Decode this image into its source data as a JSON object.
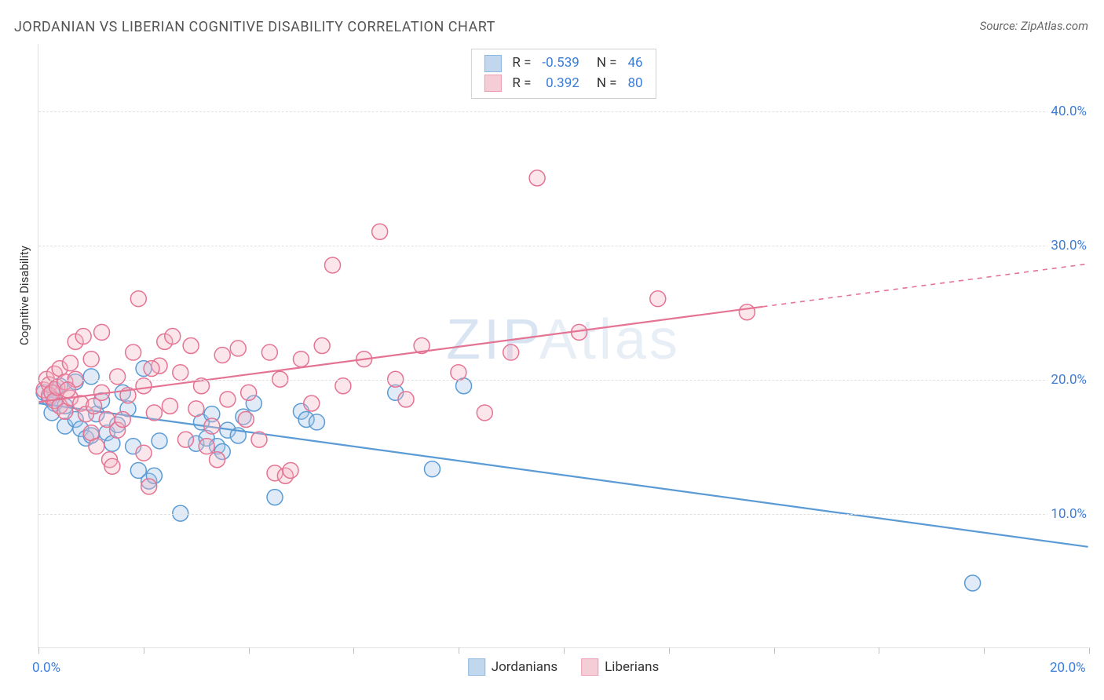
{
  "title": "JORDANIAN VS LIBERIAN COGNITIVE DISABILITY CORRELATION CHART",
  "source": "Source: ZipAtlas.com",
  "yaxis_title": "Cognitive Disability",
  "watermark": "ZIPAtlas",
  "chart": {
    "type": "scatter",
    "xlim": [
      0,
      20
    ],
    "ylim": [
      0,
      45
    ],
    "x_ticks": [
      0,
      2,
      4,
      6,
      8,
      10,
      12,
      14,
      16,
      18,
      20
    ],
    "x_labels": [
      {
        "val": 0,
        "text": "0.0%"
      },
      {
        "val": 20,
        "text": "20.0%"
      }
    ],
    "y_gridlines": [
      10,
      20,
      30,
      40
    ],
    "y_labels": [
      {
        "val": 10,
        "text": "10.0%"
      },
      {
        "val": 20,
        "text": "20.0%"
      },
      {
        "val": 30,
        "text": "30.0%"
      },
      {
        "val": 40,
        "text": "40.0%"
      }
    ],
    "marker_radius": 10,
    "marker_stroke_width": 1.5,
    "marker_fill_opacity": 0.35,
    "line_width": 2.2,
    "grid_color": "#e0e0e0",
    "background_color": "#ffffff"
  },
  "series": [
    {
      "name": "Jordanians",
      "color_stroke": "#5a9bd5",
      "color_fill": "#a7c7e7",
      "R": "-0.539",
      "N": "46",
      "trend": {
        "x1": 0,
        "y1": 18.2,
        "x2": 20,
        "y2": 7.5,
        "dash_from_x": null
      },
      "points": [
        [
          0.1,
          19.0
        ],
        [
          0.2,
          18.6
        ],
        [
          0.3,
          19.2
        ],
        [
          0.3,
          18.2
        ],
        [
          0.25,
          17.5
        ],
        [
          0.4,
          19.5
        ],
        [
          0.5,
          18.0
        ],
        [
          0.5,
          16.5
        ],
        [
          0.7,
          19.8
        ],
        [
          0.7,
          17.0
        ],
        [
          0.8,
          16.3
        ],
        [
          0.9,
          15.6
        ],
        [
          1.0,
          20.2
        ],
        [
          1.0,
          15.8
        ],
        [
          1.1,
          17.4
        ],
        [
          1.2,
          18.4
        ],
        [
          1.3,
          16.0
        ],
        [
          1.4,
          15.2
        ],
        [
          1.5,
          16.6
        ],
        [
          1.6,
          19.0
        ],
        [
          1.8,
          15.0
        ],
        [
          1.9,
          13.2
        ],
        [
          2.0,
          20.8
        ],
        [
          2.1,
          12.4
        ],
        [
          2.2,
          12.8
        ],
        [
          2.3,
          15.4
        ],
        [
          2.7,
          10.0
        ],
        [
          3.0,
          15.2
        ],
        [
          3.1,
          16.8
        ],
        [
          3.2,
          15.6
        ],
        [
          3.3,
          17.4
        ],
        [
          3.4,
          15.0
        ],
        [
          3.5,
          14.6
        ],
        [
          3.6,
          16.2
        ],
        [
          3.8,
          15.8
        ],
        [
          3.9,
          17.2
        ],
        [
          4.1,
          18.2
        ],
        [
          4.5,
          11.2
        ],
        [
          5.0,
          17.6
        ],
        [
          5.1,
          17.0
        ],
        [
          5.3,
          16.8
        ],
        [
          6.8,
          19.0
        ],
        [
          7.5,
          13.3
        ],
        [
          8.1,
          19.5
        ],
        [
          17.8,
          4.8
        ],
        [
          1.7,
          17.8
        ]
      ]
    },
    {
      "name": "Liberians",
      "color_stroke": "#e57393",
      "color_fill": "#f2b8c6",
      "R": "0.392",
      "N": "80",
      "trend": {
        "x1": 0,
        "y1": 18.3,
        "x2": 20,
        "y2": 28.6,
        "dash_from_x": 13.8
      },
      "points": [
        [
          0.1,
          19.2
        ],
        [
          0.15,
          20.0
        ],
        [
          0.2,
          19.6
        ],
        [
          0.2,
          18.8
        ],
        [
          0.25,
          19.0
        ],
        [
          0.3,
          18.4
        ],
        [
          0.3,
          20.4
        ],
        [
          0.35,
          19.4
        ],
        [
          0.4,
          18.0
        ],
        [
          0.4,
          20.8
        ],
        [
          0.5,
          19.8
        ],
        [
          0.5,
          17.6
        ],
        [
          0.6,
          21.2
        ],
        [
          0.6,
          18.6
        ],
        [
          0.7,
          20.0
        ],
        [
          0.7,
          22.8
        ],
        [
          0.8,
          18.2
        ],
        [
          0.85,
          23.2
        ],
        [
          0.9,
          17.4
        ],
        [
          1.0,
          21.5
        ],
        [
          1.0,
          16.0
        ],
        [
          1.1,
          15.0
        ],
        [
          1.2,
          23.5
        ],
        [
          1.2,
          19.0
        ],
        [
          1.3,
          17.0
        ],
        [
          1.35,
          14.0
        ],
        [
          1.4,
          13.5
        ],
        [
          1.5,
          20.2
        ],
        [
          1.5,
          16.2
        ],
        [
          1.6,
          17.0
        ],
        [
          1.7,
          18.8
        ],
        [
          1.8,
          22.0
        ],
        [
          1.9,
          26.0
        ],
        [
          2.0,
          19.5
        ],
        [
          2.0,
          14.5
        ],
        [
          2.1,
          12.0
        ],
        [
          2.2,
          17.5
        ],
        [
          2.3,
          21.0
        ],
        [
          2.4,
          22.8
        ],
        [
          2.5,
          18.0
        ],
        [
          2.55,
          23.2
        ],
        [
          2.7,
          20.5
        ],
        [
          2.8,
          15.5
        ],
        [
          2.9,
          22.5
        ],
        [
          3.0,
          17.8
        ],
        [
          3.1,
          19.5
        ],
        [
          3.2,
          15.0
        ],
        [
          3.3,
          16.5
        ],
        [
          3.4,
          14.0
        ],
        [
          3.5,
          21.8
        ],
        [
          3.6,
          18.5
        ],
        [
          3.8,
          22.3
        ],
        [
          4.0,
          19.0
        ],
        [
          4.2,
          15.5
        ],
        [
          4.4,
          22.0
        ],
        [
          4.5,
          13.0
        ],
        [
          4.6,
          20.0
        ],
        [
          4.7,
          12.8
        ],
        [
          4.8,
          13.2
        ],
        [
          5.0,
          21.5
        ],
        [
          5.2,
          18.2
        ],
        [
          5.4,
          22.5
        ],
        [
          5.6,
          28.5
        ],
        [
          5.8,
          19.5
        ],
        [
          6.2,
          21.5
        ],
        [
          6.5,
          31.0
        ],
        [
          6.8,
          20.0
        ],
        [
          7.0,
          18.5
        ],
        [
          7.3,
          22.5
        ],
        [
          8.0,
          20.5
        ],
        [
          8.5,
          17.5
        ],
        [
          9.0,
          22.0
        ],
        [
          9.5,
          35.0
        ],
        [
          10.3,
          23.5
        ],
        [
          11.8,
          26.0
        ],
        [
          13.5,
          25.0
        ],
        [
          3.95,
          17.0
        ],
        [
          2.15,
          20.8
        ],
        [
          1.05,
          18.0
        ],
        [
          0.55,
          19.2
        ]
      ]
    }
  ],
  "legend_stats_labels": {
    "R": "R =",
    "N": "N ="
  },
  "legend_series_labels": [
    "Jordanians",
    "Liberians"
  ]
}
